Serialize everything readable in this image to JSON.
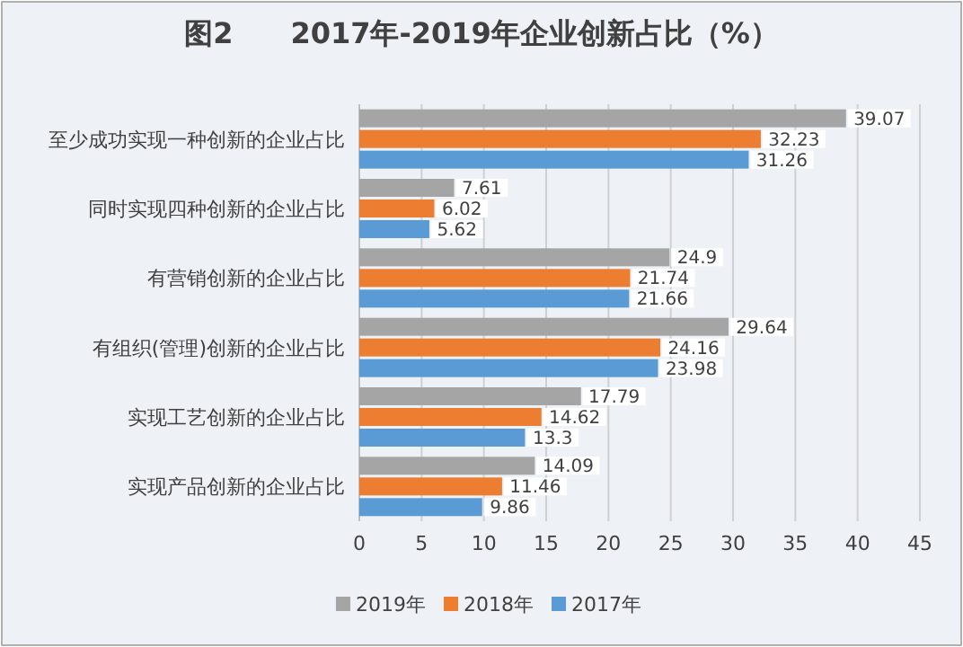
{
  "chart_data": {
    "type": "bar",
    "orientation": "horizontal",
    "title": "图2　　2017年-2019年企业创新占比（%）",
    "categories": [
      "至少成功实现一种创新的企业占比",
      "同时实现四种创新的企业占比",
      "有营销创新的企业占比",
      "有组织(管理)创新的企业占比",
      "实现工艺创新的企业占比",
      "实现产品创新的企业占比"
    ],
    "series": [
      {
        "name": "2019年",
        "color": "#a5a5a5",
        "values": [
          39.07,
          7.61,
          24.9,
          29.64,
          17.79,
          14.09
        ]
      },
      {
        "name": "2018年",
        "color": "#ed7d31",
        "values": [
          32.23,
          6.02,
          21.74,
          24.16,
          14.62,
          11.46
        ]
      },
      {
        "name": "2017年",
        "color": "#5b9bd5",
        "values": [
          31.26,
          5.62,
          21.66,
          23.98,
          13.3,
          9.86
        ]
      }
    ],
    "xlim": [
      0,
      45
    ],
    "xticks": [
      0,
      5,
      10,
      15,
      20,
      25,
      30,
      35,
      40,
      45
    ],
    "grid": "x",
    "legend": "bottom",
    "data_labels": true
  }
}
